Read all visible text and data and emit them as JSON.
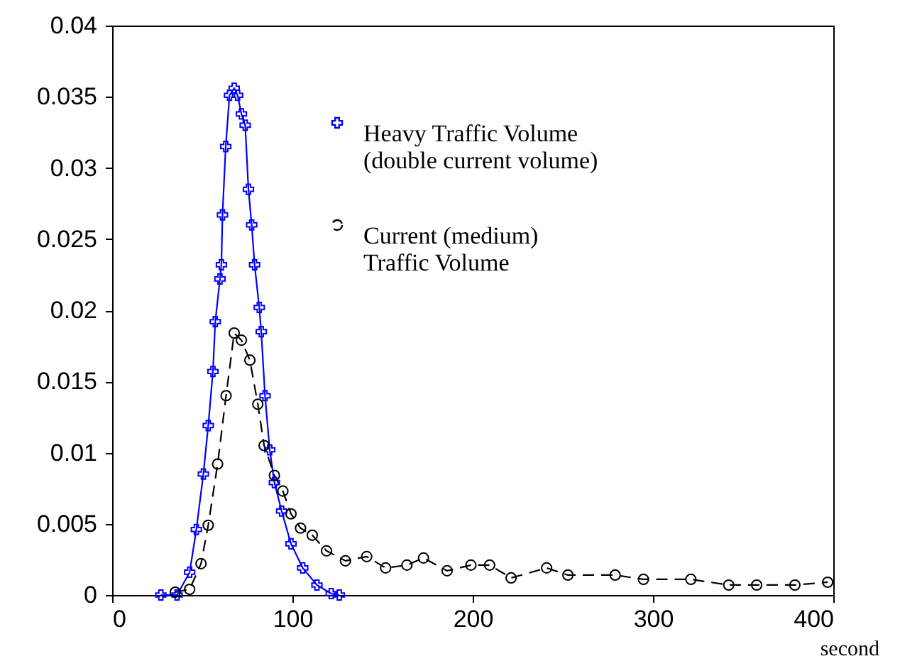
{
  "chart_data": {
    "type": "line",
    "xlabel": "second",
    "xlim": [
      0,
      400
    ],
    "xticks": [
      0,
      100,
      200,
      300,
      400
    ],
    "ylim": [
      0,
      0.04
    ],
    "yticks": [
      0,
      0.005,
      0.01,
      0.015,
      0.02,
      0.025,
      0.03,
      0.035,
      0.04
    ],
    "grid": false,
    "legend": "top right",
    "series": [
      {
        "name": "Heavy Traffic Volume\n(double current volume)",
        "color": "#0000ff",
        "marker": "cross",
        "line_style": "solid",
        "x": [
          27,
          36,
          43,
          46.7,
          50.6,
          53.3,
          55.9,
          57.2,
          59.8,
          60.6,
          61.2,
          63,
          65.1,
          67.7,
          69.6,
          71.7,
          73.8,
          75.6,
          77.4,
          79,
          81.6,
          82.7,
          84.8,
          87.4,
          90,
          94,
          99.2,
          105.7,
          113.6,
          121.5,
          126
        ],
        "values": [
          0,
          0,
          0.0016,
          0.0046,
          0.0085,
          0.0119,
          0.0157,
          0.0192,
          0.0222,
          0.0232,
          0.0267,
          0.0315,
          0.0351,
          0.0356,
          0.0351,
          0.0338,
          0.033,
          0.0285,
          0.026,
          0.0232,
          0.0202,
          0.0185,
          0.014,
          0.0102,
          0.0079,
          0.0059,
          0.0036,
          0.0019,
          0.0007,
          0.0001,
          0
        ]
      },
      {
        "name": "Current (medium)\nTraffic Volume",
        "color": "#000000",
        "marker": "circle",
        "line_style": "dashed",
        "x": [
          35,
          43,
          49.3,
          53.3,
          58.5,
          63.2,
          67.7,
          71.7,
          76.4,
          80.8,
          84.3,
          90,
          94.7,
          99.2,
          104.5,
          111,
          118.9,
          129.4,
          141.2,
          151.7,
          163.5,
          172.7,
          185.8,
          199,
          209.4,
          221.3,
          241,
          252.8,
          279,
          294.7,
          321,
          342,
          357.5,
          378.7,
          396.9
        ],
        "values": [
          0.0002,
          0.0004,
          0.0022,
          0.0049,
          0.0092,
          0.014,
          0.0184,
          0.0179,
          0.0165,
          0.0134,
          0.0105,
          0.0084,
          0.0073,
          0.0057,
          0.0047,
          0.0042,
          0.0031,
          0.0024,
          0.0027,
          0.0019,
          0.0021,
          0.0026,
          0.0017,
          0.0021,
          0.0021,
          0.0012,
          0.0019,
          0.0014,
          0.0014,
          0.0011,
          0.0011,
          0.0007,
          0.0007,
          0.0007,
          0.0009
        ]
      }
    ]
  }
}
